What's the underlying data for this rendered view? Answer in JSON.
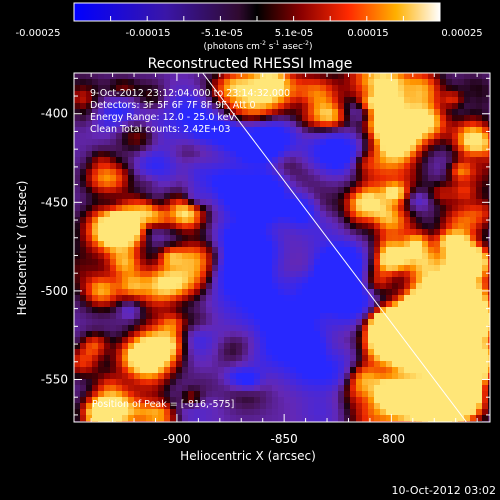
{
  "colorbar": {
    "tick_labels": [
      "-0.00025",
      "-0.00015",
      "-5.1e-05",
      "5.1e-05",
      "0.00015",
      "0.00025"
    ],
    "unit_label_parts": [
      "(photons cm",
      "-2",
      " s",
      "-1",
      " asec",
      "-2",
      ")"
    ]
  },
  "chart_data": {
    "type": "heatmap",
    "title": "Reconstructed RHESSI Image",
    "xlabel": "Heliocentric X (arcsec)",
    "ylabel": "Heliocentric Y (arcsec)",
    "xlim": [
      -948,
      -754
    ],
    "ylim": [
      -574,
      -377
    ],
    "x_ticks": [
      -900,
      -850,
      -800
    ],
    "y_ticks": [
      -550,
      -500,
      -450,
      -400
    ],
    "x_tick_labels": [
      "-900",
      "-850",
      "-800"
    ],
    "y_tick_labels": [
      "-550",
      "-500",
      "-450",
      "-400"
    ],
    "value_range": [
      -0.00025,
      0.00025
    ],
    "annotations": [
      "9-Oct-2012 23:12:04.000 to 23:14:32.000",
      "Detectors: 3F 5F 6F 7F 8F 9F, Att 0",
      "Energy Range: 12.0 - 25.0 keV",
      "Clean    Total counts: 2.42E+03"
    ],
    "peak_label": "Position of Peak = [-816,-575]",
    "limb_line": {
      "x": [
        -888,
        -765
      ],
      "y": [
        -377,
        -574
      ]
    }
  },
  "footer": {
    "timestamp": "10-Oct-2012 03:02"
  },
  "colors": {
    "background": "#000000",
    "axes": "#ffffff"
  }
}
